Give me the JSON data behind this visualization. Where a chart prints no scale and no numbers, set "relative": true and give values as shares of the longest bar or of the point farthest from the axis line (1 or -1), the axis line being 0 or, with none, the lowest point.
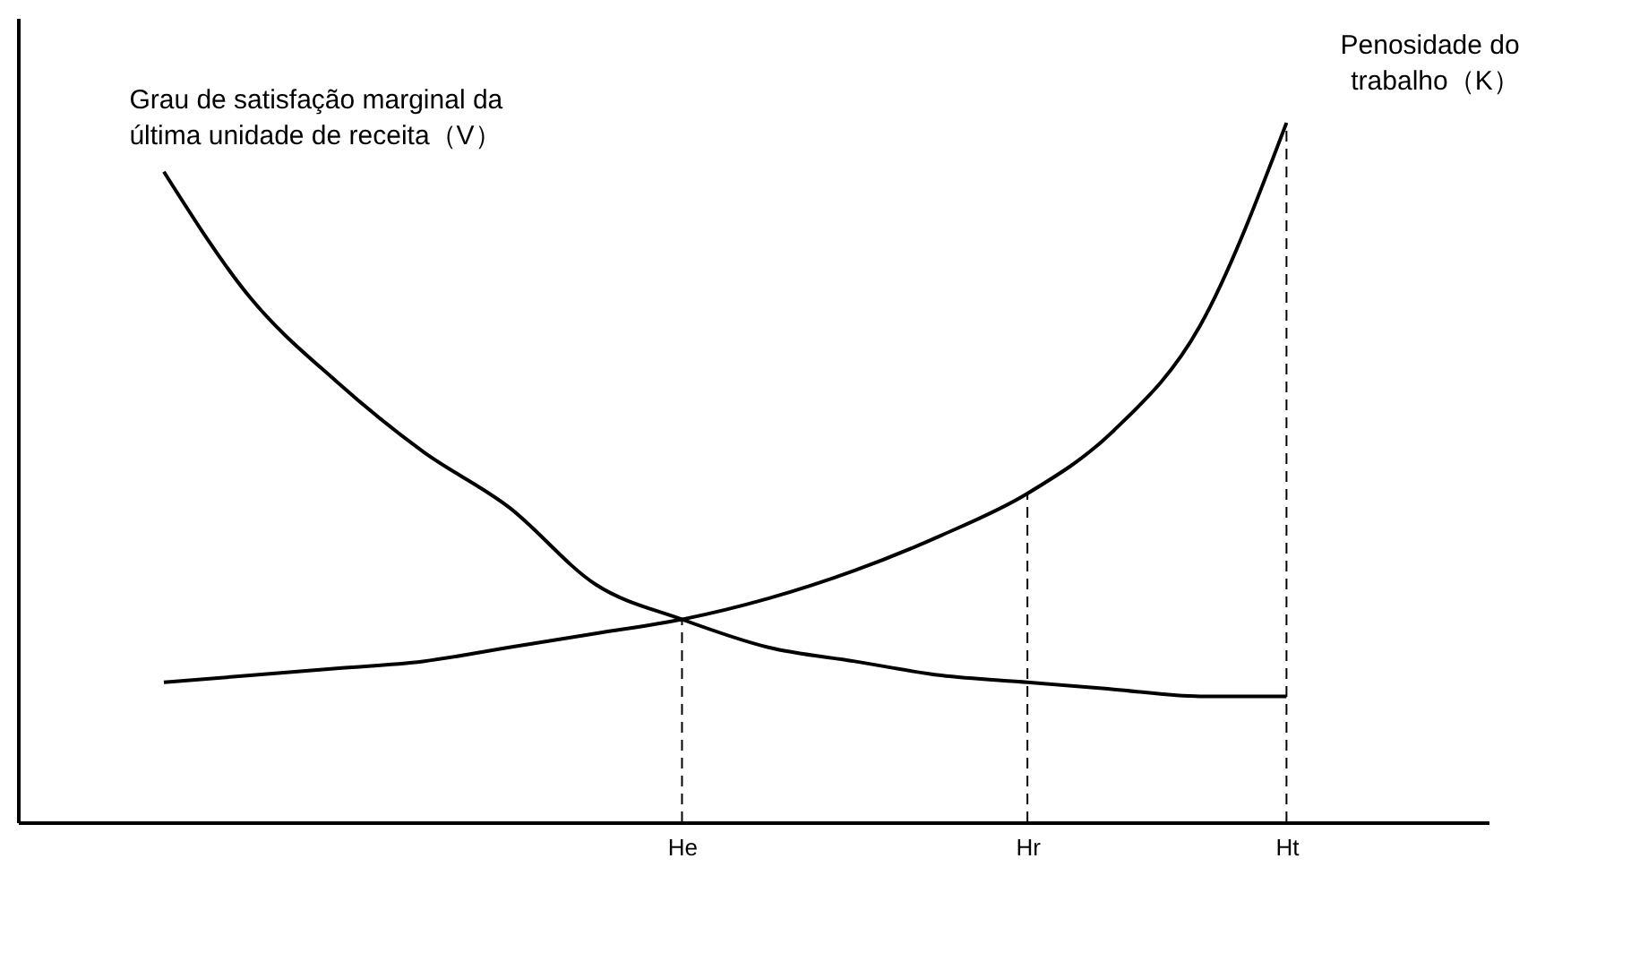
{
  "chart_data": {
    "type": "line",
    "relative": true,
    "categories": [
      null,
      null,
      null,
      null,
      null,
      null,
      "He",
      null,
      null,
      null,
      "Hr",
      null,
      null,
      "Ht"
    ],
    "series": [
      {
        "name": "Grau de satisfação marginal da última unidade de receita（V）",
        "color": "#000000",
        "values": [
          0.93,
          0.75,
          0.63,
          0.53,
          0.45,
          0.34,
          0.29,
          0.25,
          0.23,
          0.21,
          0.2,
          0.19,
          0.18,
          0.18
        ]
      },
      {
        "name": "Penosidade do trabalho（K）",
        "color": "#000000",
        "values": [
          0.2,
          0.21,
          0.22,
          0.23,
          0.25,
          0.27,
          0.29,
          0.32,
          0.36,
          0.41,
          0.47,
          0.56,
          0.71,
          1.0
        ]
      }
    ],
    "ref_lines": [
      {
        "axis": "x",
        "value": "He",
        "line_style": "dashed"
      },
      {
        "axis": "x",
        "value": "Hr",
        "line_style": "dashed"
      },
      {
        "axis": "x",
        "value": "Ht",
        "line_style": "dashed"
      }
    ],
    "grid": false,
    "marker": "none",
    "line_style": "solid"
  }
}
